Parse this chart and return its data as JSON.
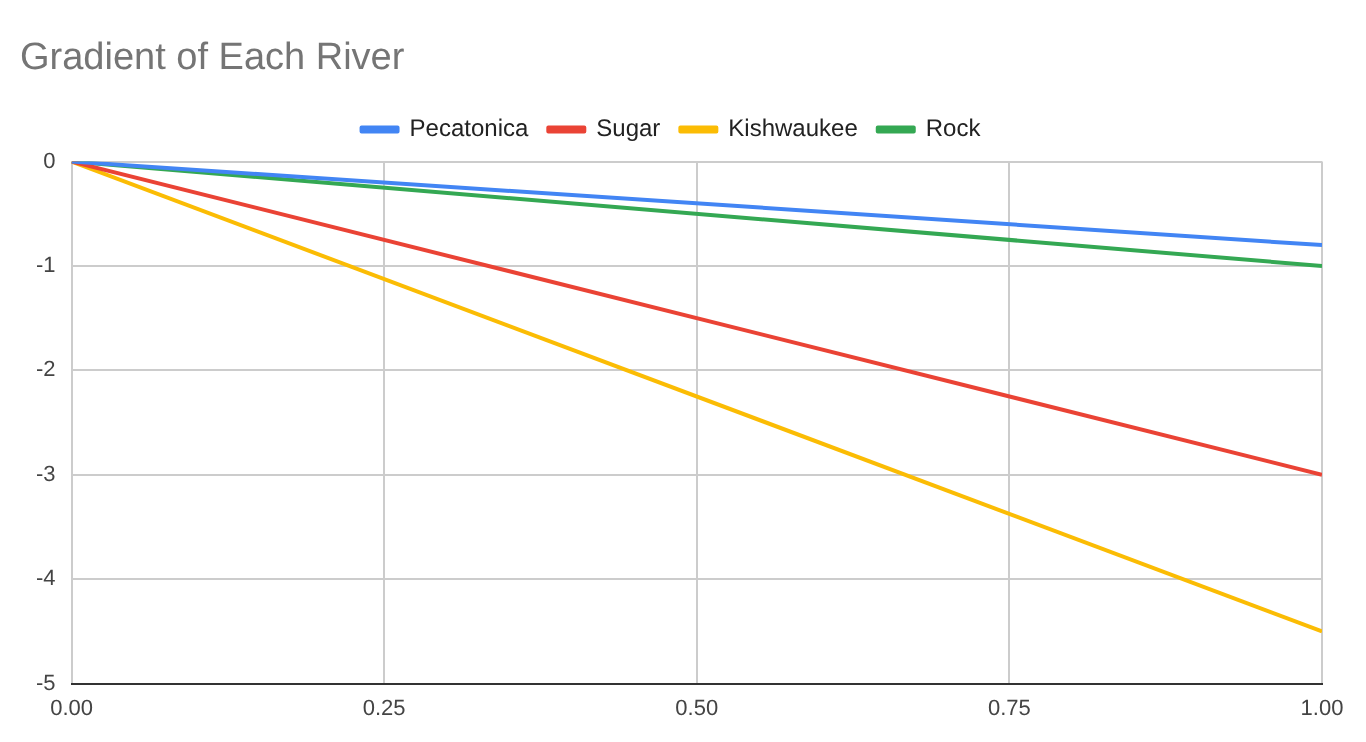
{
  "chart_data": {
    "type": "line",
    "title": "Gradient of Each River",
    "x": [
      0,
      1
    ],
    "series": [
      {
        "name": "Pecatonica",
        "color": "#4285f4",
        "values": [
          0,
          -0.8
        ]
      },
      {
        "name": "Sugar",
        "color": "#ea4335",
        "values": [
          0,
          -3
        ]
      },
      {
        "name": "Kishwaukee",
        "color": "#fbbc04",
        "values": [
          0,
          -4.5
        ]
      },
      {
        "name": "Rock",
        "color": "#34a853",
        "values": [
          0,
          -1
        ]
      }
    ],
    "xlim": [
      0,
      1
    ],
    "xticks": [
      {
        "value": 0,
        "label": "0.00"
      },
      {
        "value": 0.25,
        "label": "0.25"
      },
      {
        "value": 0.5,
        "label": "0.50"
      },
      {
        "value": 0.75,
        "label": "0.75"
      },
      {
        "value": 1,
        "label": "1.00"
      }
    ],
    "ylim": [
      -5,
      0
    ],
    "yticks": [
      0,
      -1,
      -2,
      -3,
      -4,
      -5
    ],
    "grid": true,
    "legend": "top",
    "marker": "none",
    "line_style": "solid"
  }
}
